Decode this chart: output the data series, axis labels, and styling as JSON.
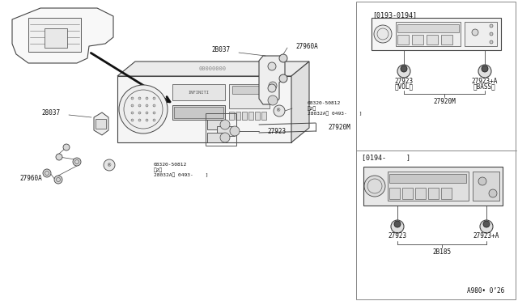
{
  "bg_color": "#ffffff",
  "lc": "#444444",
  "dc": "#111111",
  "fig_width": 6.4,
  "fig_height": 3.72,
  "dpi": 100,
  "labels": {
    "bracket_top_left": "2B037",
    "bracket_top_right": "27960A",
    "bolt_label_bot": "28037",
    "screw_label_bot": "27960A",
    "screw_sym_top": "®08320-50812\n〈2〉\n28032A【 0493-      ]",
    "screw_sym_bot": "®08320-50812\n〈2〉\n28032A【 0493-      ]",
    "connector_label": "27923",
    "harness_label": "27920M",
    "note_top": "[0193-0194]",
    "note_bot": "[0194-     ]",
    "knob_left_top": "27923",
    "knob_left_top2": "（VOL）",
    "knob_right_top": "27923+A",
    "knob_right_top2": "（BASS）",
    "harness_label_top": "27920M",
    "knob_left_bot": "27923",
    "knob_right_bot": "27923+A",
    "harness_label_bot": "2B185",
    "bottom_code": "A980• 0’26"
  }
}
